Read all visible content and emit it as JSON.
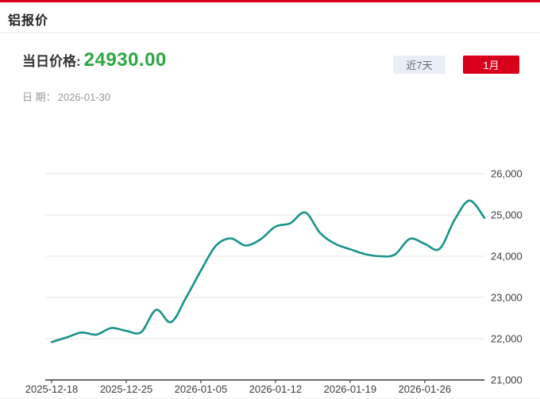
{
  "header": {
    "title": "铝报价"
  },
  "price_panel": {
    "label": "当日价格:",
    "value": "24930.00",
    "date_label": "日 期：",
    "date_value": "2026-01-30",
    "buttons": [
      {
        "label": "近7天",
        "active": false
      },
      {
        "label": "1月",
        "active": true
      }
    ]
  },
  "colors": {
    "accent_red": "#d9001b",
    "price_green": "#2ba842",
    "line_teal": "#17938b",
    "button_inactive_bg": "#e9eef6",
    "button_inactive_text": "#5f6b77",
    "grid": "#e5e5e5",
    "axis": "#555555",
    "label": "#3d3d3d"
  },
  "chart_data": {
    "type": "line",
    "title": "",
    "xlabel": "",
    "ylabel": "",
    "x_tick_labels": [
      "2025-12-18",
      "2025-12-25",
      "2026-01-05",
      "2026-01-12",
      "2026-01-19",
      "2026-01-26"
    ],
    "x_tick_indices": [
      0,
      5,
      10,
      15,
      20,
      25
    ],
    "values": [
      21920,
      22030,
      22150,
      22100,
      22260,
      22190,
      22160,
      22700,
      22400,
      22990,
      23650,
      24250,
      24430,
      24260,
      24410,
      24720,
      24800,
      25060,
      24560,
      24300,
      24170,
      24050,
      24000,
      24040,
      24420,
      24300,
      24180,
      24880,
      25350,
      24930
    ],
    "y_tick_labels": [
      "26,000",
      "25,000",
      "24,000",
      "23,000",
      "22,000",
      "21,000"
    ],
    "y_tick_values": [
      26000,
      25000,
      24000,
      23000,
      22000,
      21000
    ],
    "ylim": [
      21000,
      26000
    ],
    "grid": true,
    "legend": "none",
    "smooth": true
  }
}
